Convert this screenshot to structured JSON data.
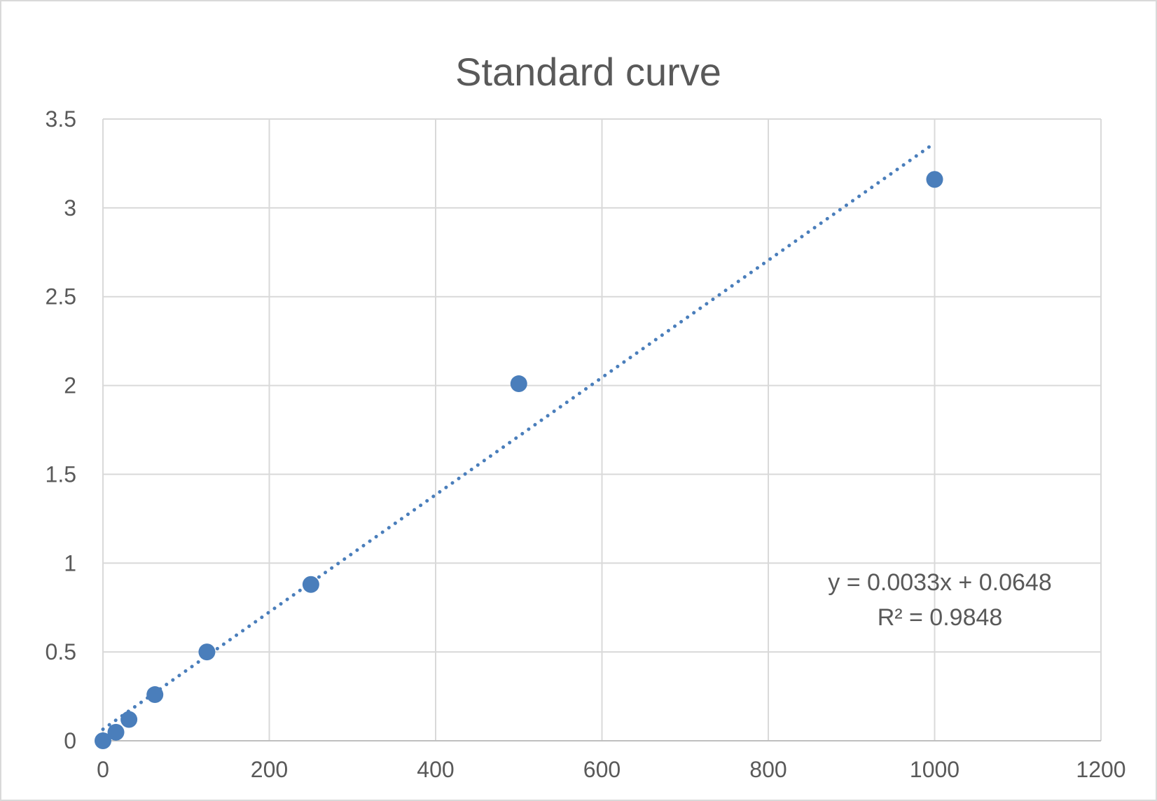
{
  "chart_data": {
    "type": "scatter",
    "title": "Standard curve",
    "xlabel": "",
    "ylabel": "",
    "xlim": [
      0,
      1200
    ],
    "ylim": [
      0,
      3.5
    ],
    "x_ticks": [
      "0",
      "200",
      "400",
      "600",
      "800",
      "1000",
      "1200"
    ],
    "y_ticks": [
      "0",
      "0.5",
      "1",
      "1.5",
      "2",
      "2.5",
      "3",
      "3.5"
    ],
    "grid": true,
    "legend": "none",
    "series": [
      {
        "x": [
          0,
          15.6,
          31.25,
          62.5,
          125,
          250,
          500,
          1000
        ],
        "y": [
          0.0,
          0.048,
          0.12,
          0.26,
          0.5,
          0.88,
          2.01,
          3.16
        ],
        "marker_color": "#4a7ebb"
      }
    ],
    "trendline": {
      "style": "dotted",
      "color": "#4a7ebb",
      "slope": 0.0033,
      "intercept": 0.0648,
      "x_range": [
        0,
        1000
      ],
      "equation_label": "y = 0.0033x + 0.0648",
      "r2_label": "R² = 0.9848"
    }
  }
}
